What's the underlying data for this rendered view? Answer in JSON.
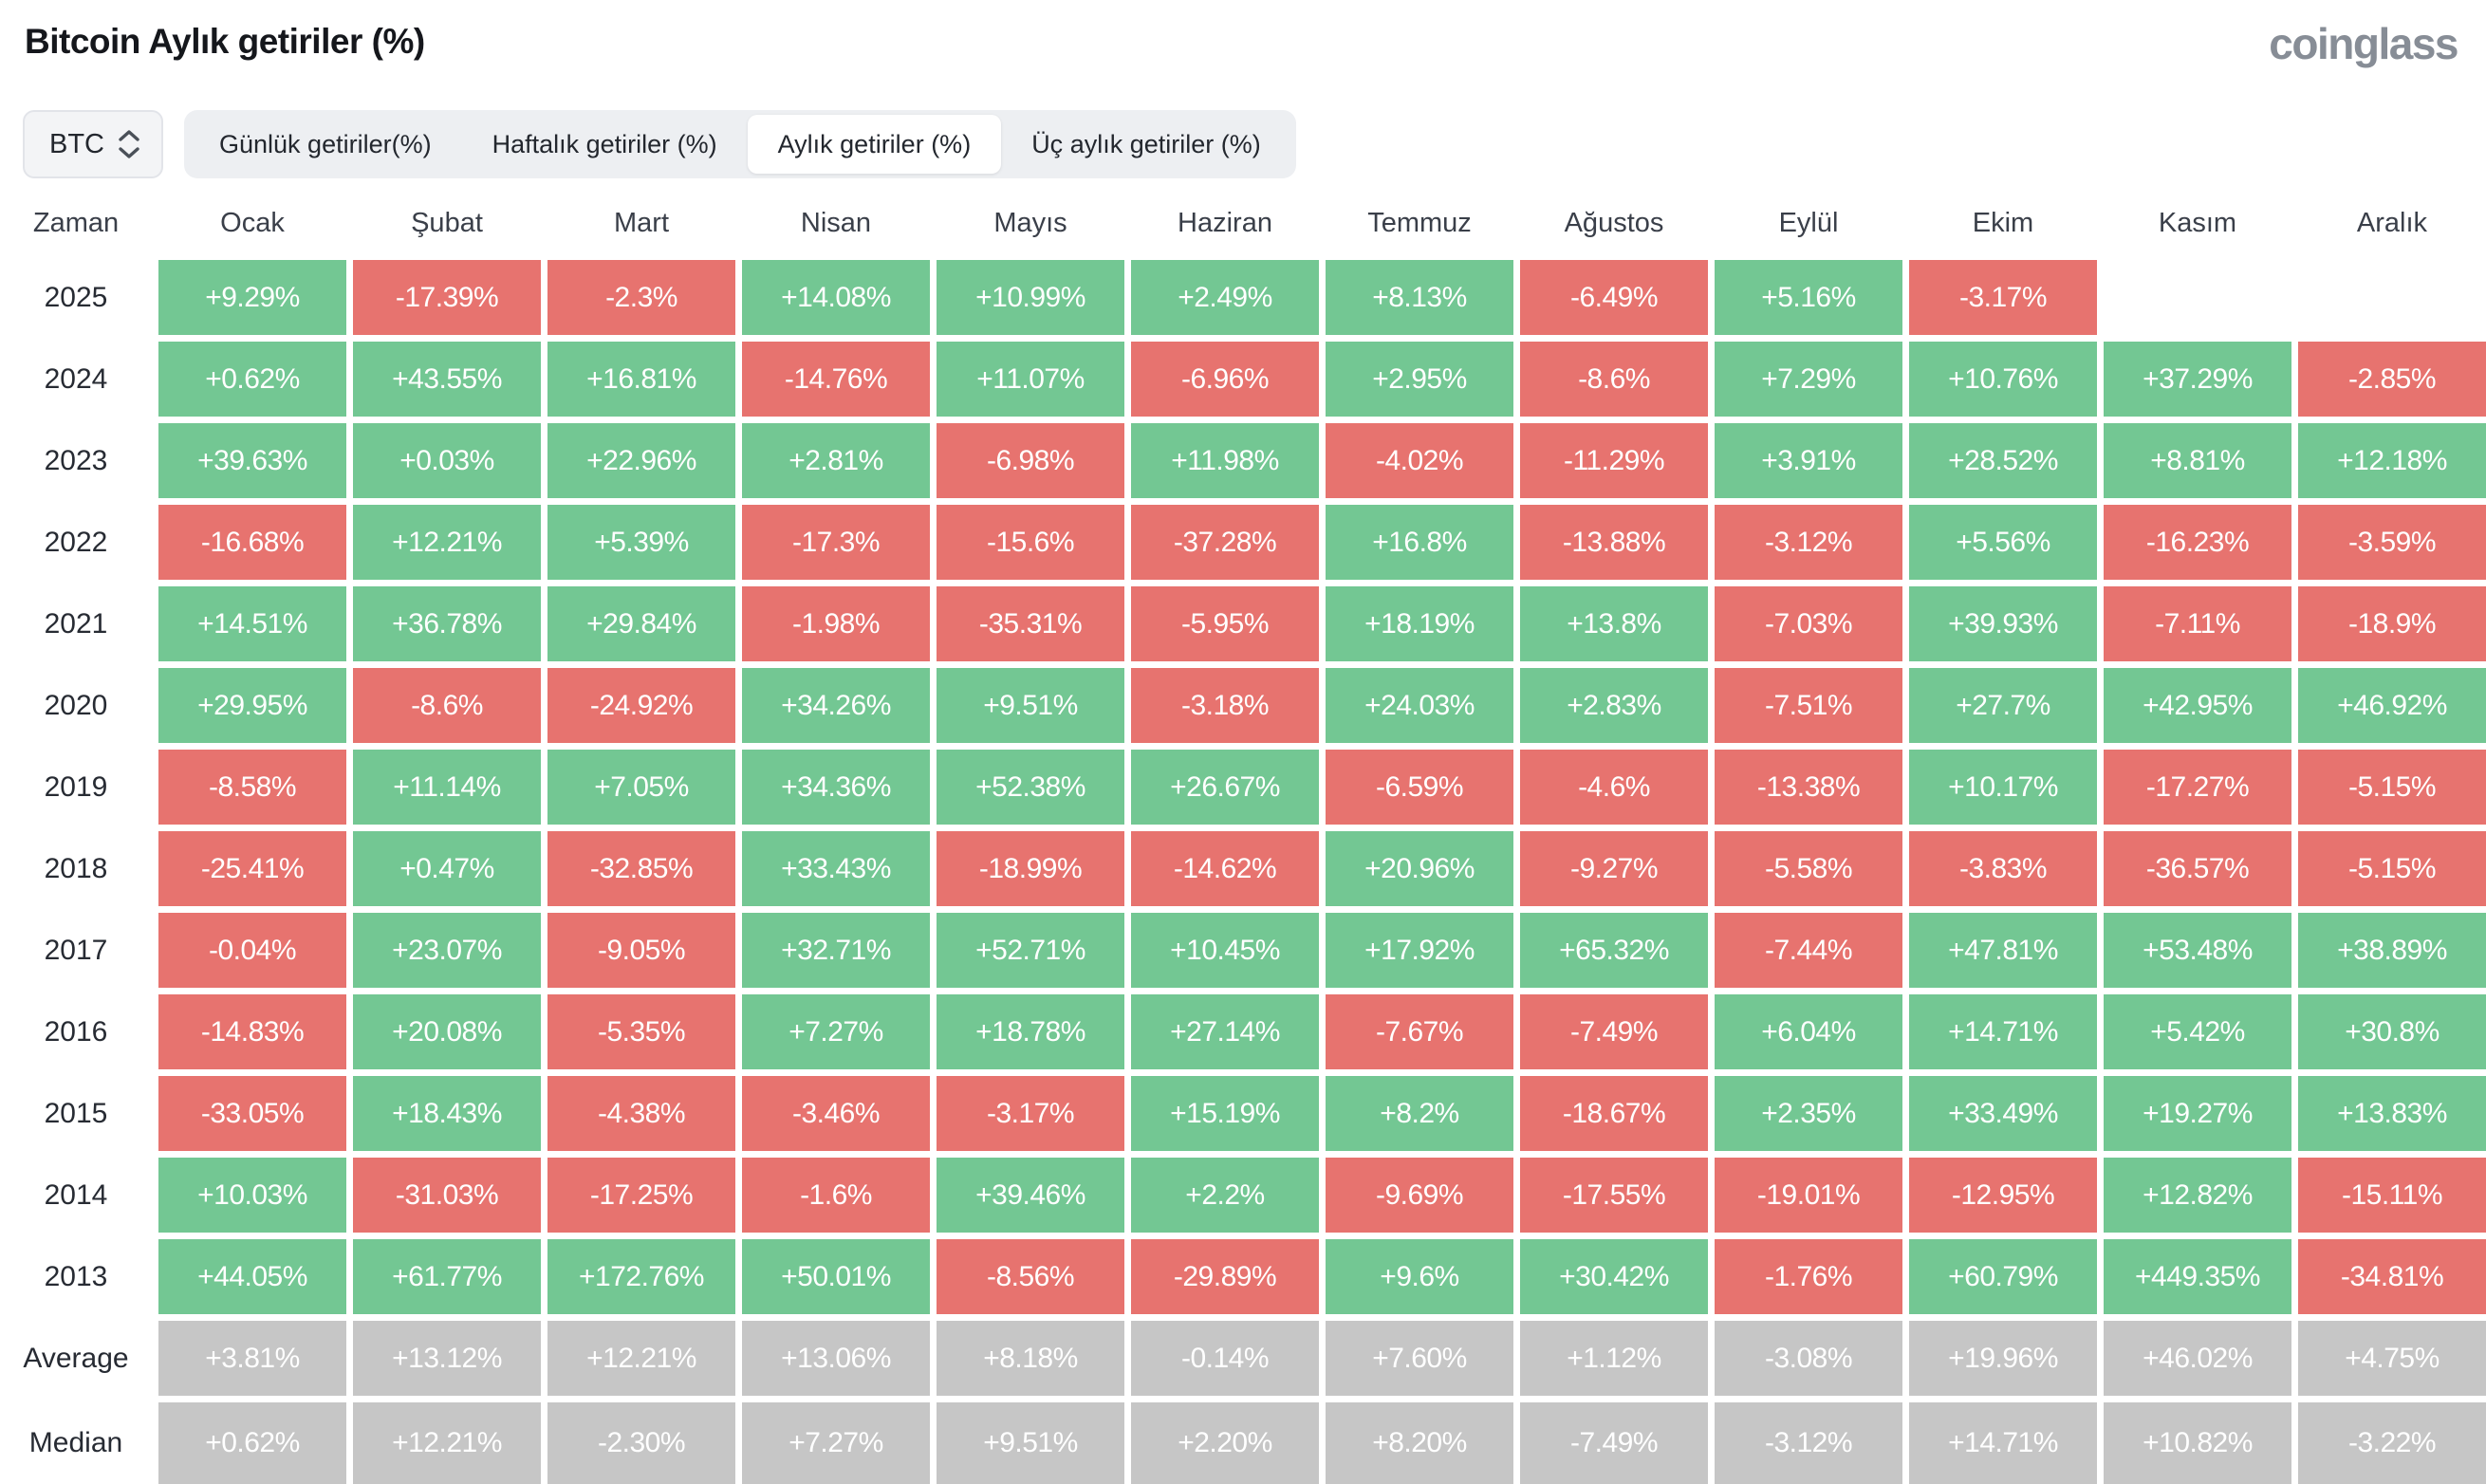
{
  "title": "Bitcoin Aylık getiriler (%)",
  "logo_text": "coinglass",
  "coin_selector": {
    "value": "BTC"
  },
  "tabs": [
    {
      "id": "daily-returns",
      "label": "Günlük getiriler(%)",
      "active": false
    },
    {
      "id": "weekly-returns",
      "label": "Haftalık getiriler (%)",
      "active": false
    },
    {
      "id": "monthly-returns",
      "label": "Aylık getiriler (%)",
      "active": true
    },
    {
      "id": "quarterly-returns",
      "label": "Üç aylık getiriler (%)",
      "active": false
    }
  ],
  "colors": {
    "positive": "#73c793",
    "negative": "#e7736f",
    "summary": "#c6c6c6"
  },
  "table": {
    "time_header": "Zaman",
    "months": [
      "Ocak",
      "Şubat",
      "Mart",
      "Nisan",
      "Mayıs",
      "Haziran",
      "Temmuz",
      "Ağustos",
      "Eylül",
      "Ekim",
      "Kasım",
      "Aralık"
    ],
    "rows": [
      {
        "label": "2025",
        "type": "year",
        "values": [
          "+9.29%",
          "-17.39%",
          "-2.3%",
          "+14.08%",
          "+10.99%",
          "+2.49%",
          "+8.13%",
          "-6.49%",
          "+5.16%",
          "-3.17%",
          "",
          ""
        ]
      },
      {
        "label": "2024",
        "type": "year",
        "values": [
          "+0.62%",
          "+43.55%",
          "+16.81%",
          "-14.76%",
          "+11.07%",
          "-6.96%",
          "+2.95%",
          "-8.6%",
          "+7.29%",
          "+10.76%",
          "+37.29%",
          "-2.85%"
        ]
      },
      {
        "label": "2023",
        "type": "year",
        "values": [
          "+39.63%",
          "+0.03%",
          "+22.96%",
          "+2.81%",
          "-6.98%",
          "+11.98%",
          "-4.02%",
          "-11.29%",
          "+3.91%",
          "+28.52%",
          "+8.81%",
          "+12.18%"
        ]
      },
      {
        "label": "2022",
        "type": "year",
        "values": [
          "-16.68%",
          "+12.21%",
          "+5.39%",
          "-17.3%",
          "-15.6%",
          "-37.28%",
          "+16.8%",
          "-13.88%",
          "-3.12%",
          "+5.56%",
          "-16.23%",
          "-3.59%"
        ]
      },
      {
        "label": "2021",
        "type": "year",
        "values": [
          "+14.51%",
          "+36.78%",
          "+29.84%",
          "-1.98%",
          "-35.31%",
          "-5.95%",
          "+18.19%",
          "+13.8%",
          "-7.03%",
          "+39.93%",
          "-7.11%",
          "-18.9%"
        ]
      },
      {
        "label": "2020",
        "type": "year",
        "values": [
          "+29.95%",
          "-8.6%",
          "-24.92%",
          "+34.26%",
          "+9.51%",
          "-3.18%",
          "+24.03%",
          "+2.83%",
          "-7.51%",
          "+27.7%",
          "+42.95%",
          "+46.92%"
        ]
      },
      {
        "label": "2019",
        "type": "year",
        "values": [
          "-8.58%",
          "+11.14%",
          "+7.05%",
          "+34.36%",
          "+52.38%",
          "+26.67%",
          "-6.59%",
          "-4.6%",
          "-13.38%",
          "+10.17%",
          "-17.27%",
          "-5.15%"
        ]
      },
      {
        "label": "2018",
        "type": "year",
        "values": [
          "-25.41%",
          "+0.47%",
          "-32.85%",
          "+33.43%",
          "-18.99%",
          "-14.62%",
          "+20.96%",
          "-9.27%",
          "-5.58%",
          "-3.83%",
          "-36.57%",
          "-5.15%"
        ]
      },
      {
        "label": "2017",
        "type": "year",
        "values": [
          "-0.04%",
          "+23.07%",
          "-9.05%",
          "+32.71%",
          "+52.71%",
          "+10.45%",
          "+17.92%",
          "+65.32%",
          "-7.44%",
          "+47.81%",
          "+53.48%",
          "+38.89%"
        ]
      },
      {
        "label": "2016",
        "type": "year",
        "values": [
          "-14.83%",
          "+20.08%",
          "-5.35%",
          "+7.27%",
          "+18.78%",
          "+27.14%",
          "-7.67%",
          "-7.49%",
          "+6.04%",
          "+14.71%",
          "+5.42%",
          "+30.8%"
        ]
      },
      {
        "label": "2015",
        "type": "year",
        "values": [
          "-33.05%",
          "+18.43%",
          "-4.38%",
          "-3.46%",
          "-3.17%",
          "+15.19%",
          "+8.2%",
          "-18.67%",
          "+2.35%",
          "+33.49%",
          "+19.27%",
          "+13.83%"
        ]
      },
      {
        "label": "2014",
        "type": "year",
        "values": [
          "+10.03%",
          "-31.03%",
          "-17.25%",
          "-1.6%",
          "+39.46%",
          "+2.2%",
          "-9.69%",
          "-17.55%",
          "-19.01%",
          "-12.95%",
          "+12.82%",
          "-15.11%"
        ]
      },
      {
        "label": "2013",
        "type": "year",
        "values": [
          "+44.05%",
          "+61.77%",
          "+172.76%",
          "+50.01%",
          "-8.56%",
          "-29.89%",
          "+9.6%",
          "+30.42%",
          "-1.76%",
          "+60.79%",
          "+449.35%",
          "-34.81%"
        ]
      },
      {
        "label": "Average",
        "type": "summary",
        "values": [
          "+3.81%",
          "+13.12%",
          "+12.21%",
          "+13.06%",
          "+8.18%",
          "-0.14%",
          "+7.60%",
          "+1.12%",
          "-3.08%",
          "+19.96%",
          "+46.02%",
          "+4.75%"
        ]
      },
      {
        "label": "Median",
        "type": "summary",
        "values": [
          "+0.62%",
          "+12.21%",
          "-2.30%",
          "+7.27%",
          "+9.51%",
          "+2.20%",
          "+8.20%",
          "-7.49%",
          "-3.12%",
          "+14.71%",
          "+10.82%",
          "-3.22%"
        ]
      }
    ]
  },
  "chart_data": {
    "type": "heatmap",
    "title": "Bitcoin Aylık getiriler (%)",
    "x": [
      "Ocak",
      "Şubat",
      "Mart",
      "Nisan",
      "Mayıs",
      "Haziran",
      "Temmuz",
      "Ağustos",
      "Eylül",
      "Ekim",
      "Kasım",
      "Aralık"
    ],
    "y": [
      "2025",
      "2024",
      "2023",
      "2022",
      "2021",
      "2020",
      "2019",
      "2018",
      "2017",
      "2016",
      "2015",
      "2014",
      "2013",
      "Average",
      "Median"
    ],
    "values": [
      [
        9.29,
        -17.39,
        -2.3,
        14.08,
        10.99,
        2.49,
        8.13,
        -6.49,
        5.16,
        -3.17,
        null,
        null
      ],
      [
        0.62,
        43.55,
        16.81,
        -14.76,
        11.07,
        -6.96,
        2.95,
        -8.6,
        7.29,
        10.76,
        37.29,
        -2.85
      ],
      [
        39.63,
        0.03,
        22.96,
        2.81,
        -6.98,
        11.98,
        -4.02,
        -11.29,
        3.91,
        28.52,
        8.81,
        12.18
      ],
      [
        -16.68,
        12.21,
        5.39,
        -17.3,
        -15.6,
        -37.28,
        16.8,
        -13.88,
        -3.12,
        5.56,
        -16.23,
        -3.59
      ],
      [
        14.51,
        36.78,
        29.84,
        -1.98,
        -35.31,
        -5.95,
        18.19,
        13.8,
        -7.03,
        39.93,
        -7.11,
        -18.9
      ],
      [
        29.95,
        -8.6,
        -24.92,
        34.26,
        9.51,
        -3.18,
        24.03,
        2.83,
        -7.51,
        27.7,
        42.95,
        46.92
      ],
      [
        -8.58,
        11.14,
        7.05,
        34.36,
        52.38,
        26.67,
        -6.59,
        -4.6,
        -13.38,
        10.17,
        -17.27,
        -5.15
      ],
      [
        -25.41,
        0.47,
        -32.85,
        33.43,
        -18.99,
        -14.62,
        20.96,
        -9.27,
        -5.58,
        -3.83,
        -36.57,
        -5.15
      ],
      [
        -0.04,
        23.07,
        -9.05,
        32.71,
        52.71,
        10.45,
        17.92,
        65.32,
        -7.44,
        47.81,
        53.48,
        38.89
      ],
      [
        -14.83,
        20.08,
        -5.35,
        7.27,
        18.78,
        27.14,
        -7.67,
        -7.49,
        6.04,
        14.71,
        5.42,
        30.8
      ],
      [
        -33.05,
        18.43,
        -4.38,
        -3.46,
        -3.17,
        15.19,
        8.2,
        -18.67,
        2.35,
        33.49,
        19.27,
        13.83
      ],
      [
        10.03,
        -31.03,
        -17.25,
        -1.6,
        39.46,
        2.2,
        -9.69,
        -17.55,
        -19.01,
        -12.95,
        12.82,
        -15.11
      ],
      [
        44.05,
        61.77,
        172.76,
        50.01,
        -8.56,
        -29.89,
        9.6,
        30.42,
        -1.76,
        60.79,
        449.35,
        -34.81
      ],
      [
        3.81,
        13.12,
        12.21,
        13.06,
        8.18,
        -0.14,
        7.6,
        1.12,
        -3.08,
        19.96,
        46.02,
        4.75
      ],
      [
        0.62,
        12.21,
        -2.3,
        7.27,
        9.51,
        2.2,
        8.2,
        -7.49,
        -3.12,
        14.71,
        10.82,
        -3.22
      ]
    ],
    "legend": "green = positive monthly return, red = negative monthly return, gray = Average/Median summary rows"
  }
}
